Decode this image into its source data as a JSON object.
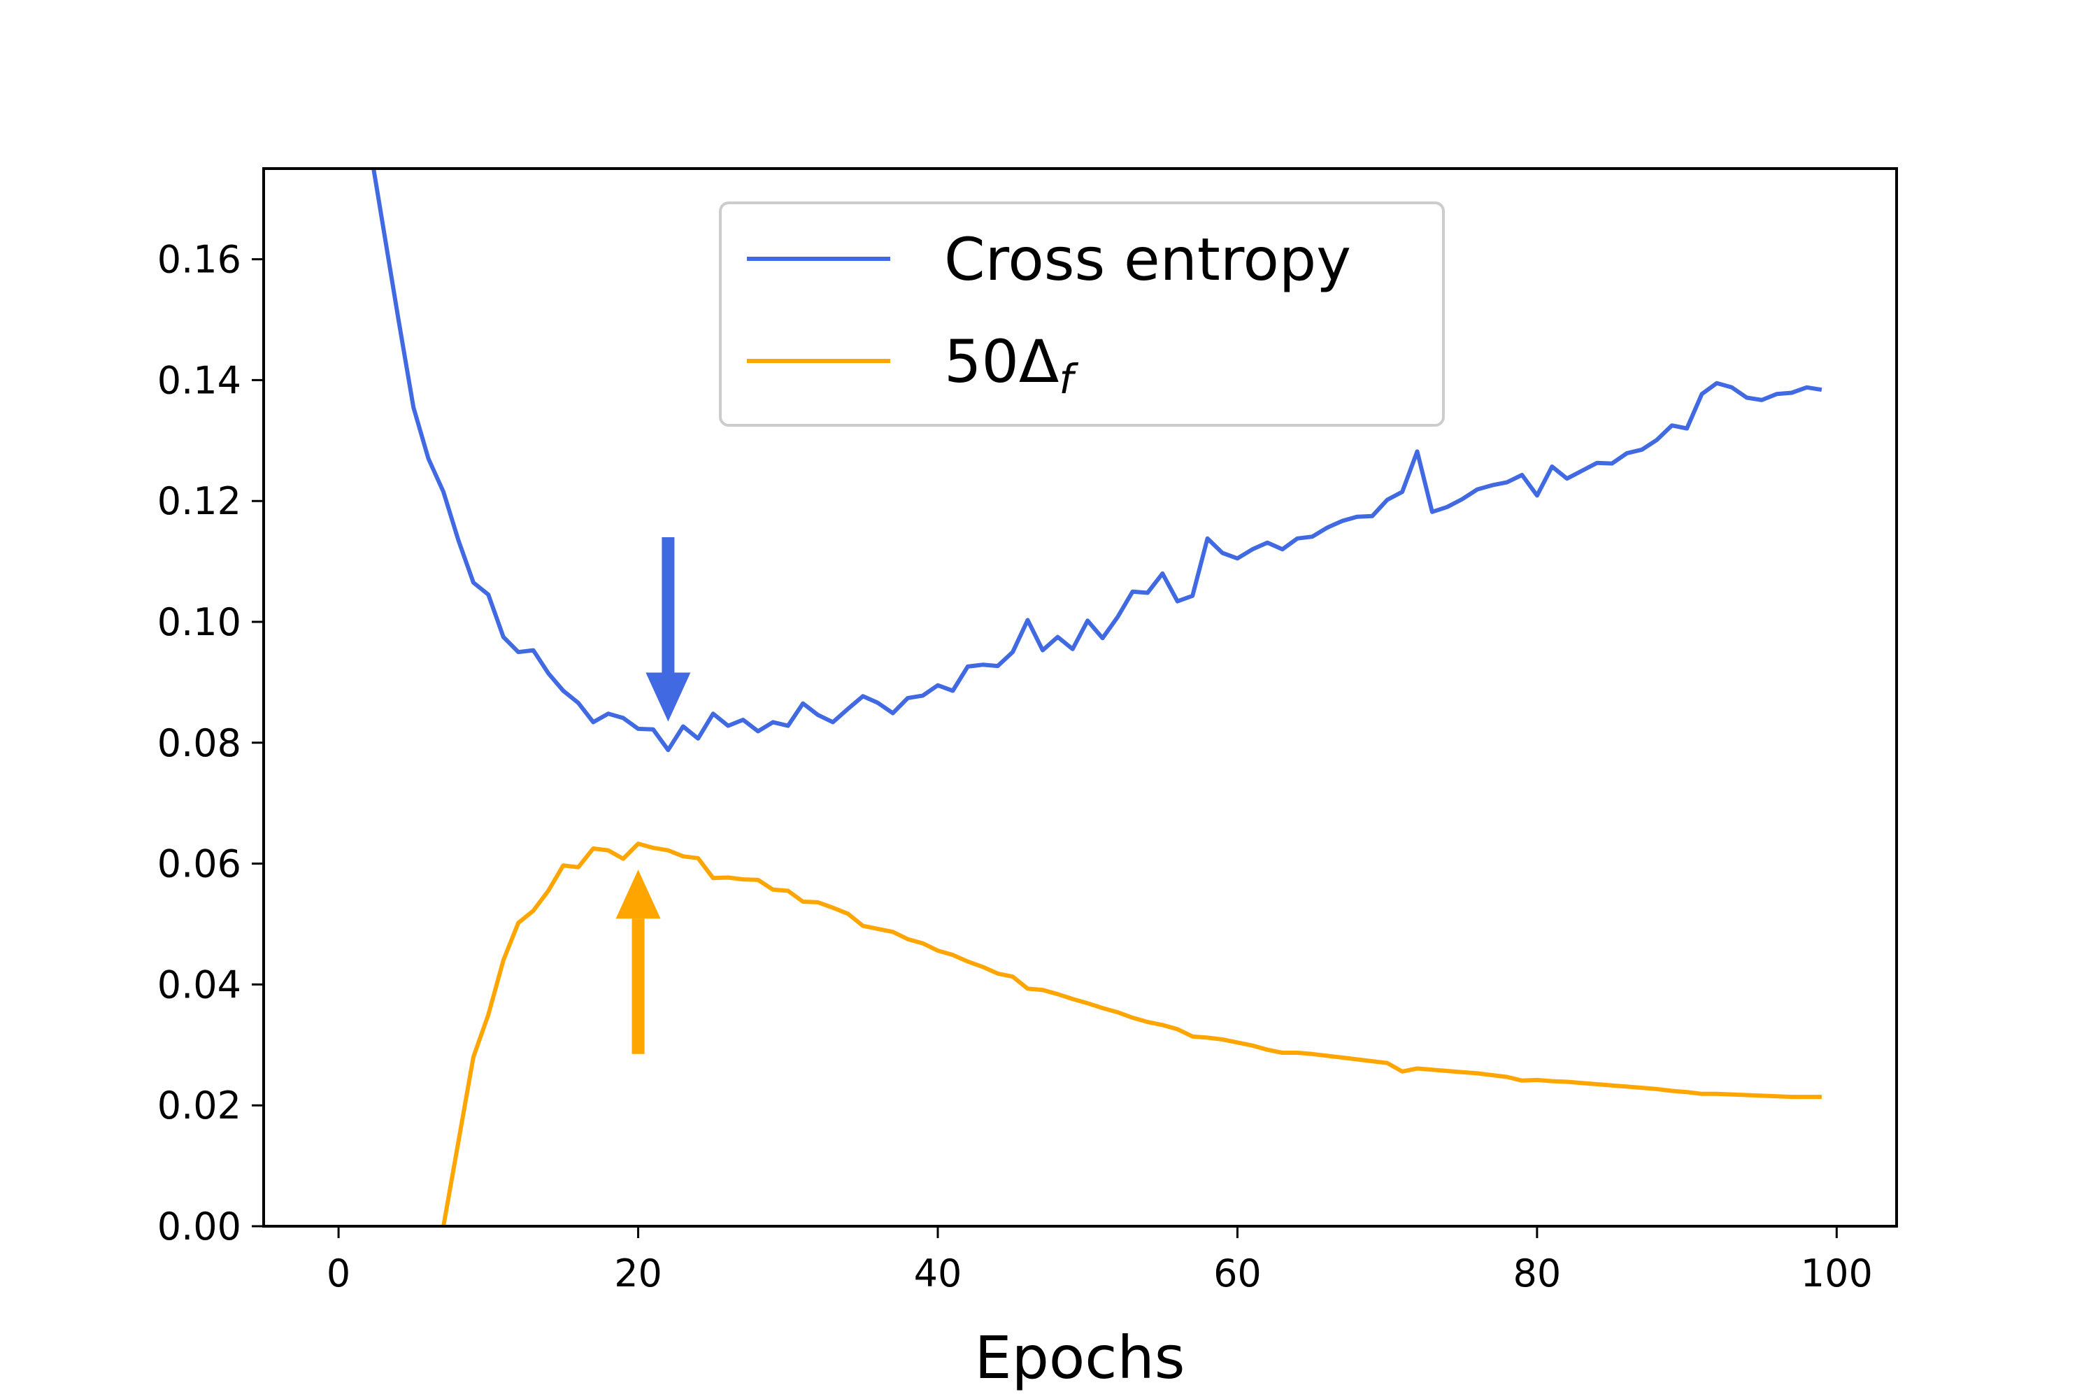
{
  "chart_data": {
    "type": "line",
    "title": "",
    "xlabel": "Epochs",
    "ylabel": "",
    "xlim": [
      -5,
      104
    ],
    "ylim": [
      0,
      0.175
    ],
    "xticks": [
      0,
      20,
      40,
      60,
      80,
      100
    ],
    "yticks": [
      0.0,
      0.02,
      0.04,
      0.06,
      0.08,
      0.1,
      0.12,
      0.14,
      0.16
    ],
    "ytick_labels": [
      "0.00",
      "0.02",
      "0.04",
      "0.06",
      "0.08",
      "0.10",
      "0.12",
      "0.14",
      "0.16"
    ],
    "grid": false,
    "legend": {
      "position": "upper-center"
    },
    "series": [
      {
        "name": "Cross entropy",
        "color": "#4169e1",
        "x": [
          2,
          3,
          4,
          5,
          6,
          7,
          8,
          9,
          10,
          11,
          12,
          13,
          14,
          15,
          16,
          17,
          18,
          19,
          20,
          21,
          22,
          23,
          24,
          25,
          26,
          27,
          28,
          29,
          30,
          31,
          32,
          33,
          34,
          35,
          36,
          37,
          38,
          39,
          40,
          41,
          42,
          43,
          44,
          45,
          46,
          47,
          48,
          49,
          50,
          51,
          52,
          53,
          54,
          55,
          56,
          57,
          58,
          59,
          60,
          61,
          62,
          63,
          64,
          65,
          66,
          67,
          68,
          69,
          70,
          71,
          72,
          73,
          74,
          75,
          76,
          77,
          78,
          79,
          80,
          81,
          82,
          83,
          84,
          85,
          86,
          87,
          88,
          89,
          90,
          91,
          92,
          93,
          94,
          95,
          96,
          97,
          98,
          99
        ],
        "values": [
          0.18,
          0.165,
          0.15,
          0.1355,
          0.127,
          0.1215,
          0.1135,
          0.1065,
          0.1045,
          0.0975,
          0.095,
          0.0953,
          0.0915,
          0.0886,
          0.0866,
          0.0834,
          0.0848,
          0.0841,
          0.0823,
          0.0822,
          0.0788,
          0.0827,
          0.0807,
          0.0848,
          0.0828,
          0.0838,
          0.0819,
          0.0834,
          0.0828,
          0.0865,
          0.0846,
          0.0834,
          0.0856,
          0.0877,
          0.0866,
          0.0849,
          0.0874,
          0.0878,
          0.0895,
          0.0886,
          0.0926,
          0.0929,
          0.0927,
          0.095,
          0.1003,
          0.0953,
          0.0975,
          0.0955,
          0.1002,
          0.0973,
          0.1008,
          0.105,
          0.1048,
          0.108,
          0.1034,
          0.1043,
          0.1138,
          0.1114,
          0.1105,
          0.112,
          0.1131,
          0.112,
          0.1138,
          0.1141,
          0.1156,
          0.1167,
          0.1174,
          0.1175,
          0.1202,
          0.1215,
          0.1282,
          0.1182,
          0.119,
          0.1203,
          0.1219,
          0.1226,
          0.1231,
          0.1243,
          0.1209,
          0.1257,
          0.1237,
          0.125,
          0.1263,
          0.1262,
          0.1279,
          0.1285,
          0.1301,
          0.1325,
          0.132,
          0.1377,
          0.1395,
          0.1388,
          0.1371,
          0.1367,
          0.1377,
          0.1379,
          0.1388,
          0.1384
        ]
      },
      {
        "name": "50Δf",
        "color": "#ffa500",
        "x": [
          7,
          8,
          9,
          10,
          11,
          12,
          13,
          14,
          15,
          16,
          17,
          18,
          19,
          20,
          21,
          22,
          23,
          24,
          25,
          26,
          27,
          28,
          29,
          30,
          31,
          32,
          33,
          34,
          35,
          36,
          37,
          38,
          39,
          40,
          41,
          42,
          43,
          44,
          45,
          46,
          47,
          48,
          49,
          50,
          51,
          52,
          53,
          54,
          55,
          56,
          57,
          58,
          59,
          60,
          61,
          62,
          63,
          64,
          65,
          66,
          67,
          68,
          69,
          70,
          71,
          72,
          73,
          74,
          75,
          76,
          77,
          78,
          79,
          80,
          81,
          82,
          83,
          84,
          85,
          86,
          87,
          88,
          89,
          90,
          91,
          92,
          93,
          94,
          95,
          96,
          97,
          98,
          99
        ],
        "values": [
          0.0,
          0.014,
          0.028,
          0.035,
          0.044,
          0.0502,
          0.0522,
          0.0555,
          0.0597,
          0.0594,
          0.0625,
          0.0622,
          0.0608,
          0.0633,
          0.0626,
          0.0622,
          0.0612,
          0.0609,
          0.0576,
          0.0577,
          0.0574,
          0.0573,
          0.0557,
          0.0555,
          0.0537,
          0.0536,
          0.0527,
          0.0517,
          0.0497,
          0.0492,
          0.0487,
          0.0475,
          0.0468,
          0.0456,
          0.0449,
          0.0438,
          0.0429,
          0.0418,
          0.0413,
          0.0393,
          0.0391,
          0.0384,
          0.0376,
          0.0369,
          0.0361,
          0.0354,
          0.0345,
          0.0338,
          0.0333,
          0.0326,
          0.0314,
          0.0312,
          0.0309,
          0.0304,
          0.0299,
          0.0292,
          0.0287,
          0.0287,
          0.0285,
          0.0282,
          0.0279,
          0.0276,
          0.0273,
          0.027,
          0.0256,
          0.0261,
          0.0259,
          0.0257,
          0.0255,
          0.0253,
          0.025,
          0.0247,
          0.0241,
          0.0242,
          0.024,
          0.0239,
          0.0237,
          0.0235,
          0.0233,
          0.0231,
          0.0229,
          0.0227,
          0.0224,
          0.0222,
          0.0219,
          0.0219,
          0.0218,
          0.0217,
          0.0216,
          0.0215,
          0.0214,
          0.0214,
          0.0214
        ]
      }
    ],
    "annotations": [
      {
        "type": "arrow",
        "direction": "down",
        "color": "#4169e1",
        "x": 22,
        "y_from": 0.114,
        "y_to": 0.0835
      },
      {
        "type": "arrow",
        "direction": "up",
        "color": "#ffa500",
        "x": 20,
        "y_from": 0.0285,
        "y_to": 0.059
      }
    ]
  }
}
